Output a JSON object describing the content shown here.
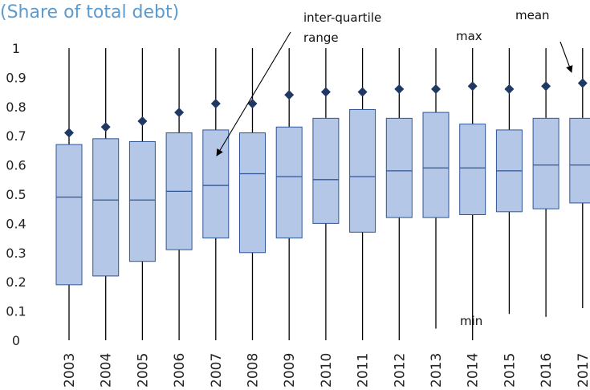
{
  "title": "(Share of total debt)",
  "colors": {
    "box_fill": "#b4c7e7",
    "box_stroke": "#2f5597",
    "mean_marker": "#1f3864",
    "whisker": "#000000",
    "title": "#5a9bd0"
  },
  "chart_data": {
    "type": "boxplot",
    "title": "(Share of total debt)",
    "xlabel": "",
    "ylabel": "",
    "ylim": [
      0,
      1
    ],
    "yticks": [
      0,
      0.1,
      0.2,
      0.3,
      0.4,
      0.5,
      0.6,
      0.7,
      0.8,
      0.9,
      1
    ],
    "ytick_labels": [
      "0",
      "0.1",
      "0.2",
      "0.3",
      "0.4",
      "0.5",
      "0.6",
      "0.7",
      "0.8",
      "0.9",
      "1"
    ],
    "categories": [
      "2003",
      "2004",
      "2005",
      "2006",
      "2007",
      "2008",
      "2009",
      "2010",
      "2011",
      "2012",
      "2013",
      "2014",
      "2015",
      "2016",
      "2017"
    ],
    "min": [
      0.0,
      0.0,
      0.0,
      0.0,
      0.0,
      0.0,
      0.0,
      0.0,
      0.0,
      0.0,
      0.04,
      0.0,
      0.09,
      0.08,
      0.11
    ],
    "q1": [
      0.19,
      0.22,
      0.27,
      0.31,
      0.35,
      0.3,
      0.35,
      0.4,
      0.37,
      0.42,
      0.42,
      0.43,
      0.44,
      0.45,
      0.47
    ],
    "median": [
      0.49,
      0.48,
      0.48,
      0.51,
      0.53,
      0.57,
      0.56,
      0.55,
      0.56,
      0.58,
      0.59,
      0.59,
      0.58,
      0.6,
      0.6
    ],
    "q3": [
      0.67,
      0.69,
      0.68,
      0.71,
      0.72,
      0.71,
      0.73,
      0.76,
      0.79,
      0.76,
      0.78,
      0.74,
      0.72,
      0.76,
      0.76
    ],
    "max": [
      1.0,
      1.0,
      1.0,
      1.0,
      1.0,
      1.0,
      1.0,
      1.0,
      1.0,
      1.0,
      1.0,
      1.0,
      1.0,
      1.0,
      1.0
    ],
    "mean": [
      0.71,
      0.73,
      0.75,
      0.78,
      0.81,
      0.81,
      0.84,
      0.85,
      0.85,
      0.86,
      0.86,
      0.87,
      0.86,
      0.87,
      0.88
    ],
    "annotations": [
      {
        "text": "inter-quartile",
        "target": "2007"
      },
      {
        "text": "range",
        "target": "2007"
      },
      {
        "text": "max",
        "target": "2013"
      },
      {
        "text": "min",
        "target": "2014"
      },
      {
        "text": "mean",
        "target": "2017"
      }
    ]
  }
}
